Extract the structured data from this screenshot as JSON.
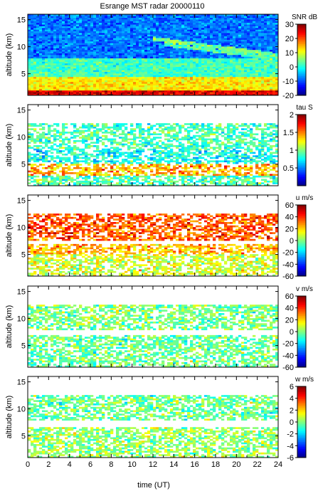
{
  "chart_data": [
    {
      "type": "heatmap",
      "title": "Esrange MST radar 20000110",
      "ylabel": "altitude (km)",
      "xlim": [
        0,
        24
      ],
      "ylim": [
        1,
        16
      ],
      "yticks": [
        5,
        10,
        15
      ],
      "colorbar": {
        "label": "SNR dB",
        "range": [
          -20,
          30
        ],
        "ticks": [
          -20,
          -10,
          0,
          10,
          20,
          30
        ]
      },
      "layers": [
        {
          "alt_range": [
            1.0,
            2.0
          ],
          "value": 25
        },
        {
          "alt_range": [
            2.0,
            4.5
          ],
          "value": 12
        },
        {
          "alt_range": [
            4.5,
            8.0
          ],
          "value": 2
        },
        {
          "alt_range": [
            8.0,
            16.0
          ],
          "value": -8
        }
      ],
      "features": [
        {
          "time_range": [
            12,
            24
          ],
          "alt_start": [
            11.5,
            8.5
          ],
          "value": 5
        },
        {
          "time_range": [
            13,
            24
          ],
          "alt_start": [
            10.5,
            7.8
          ],
          "value": 3
        }
      ]
    },
    {
      "type": "heatmap",
      "ylabel": "altitude (km)",
      "xlim": [
        0,
        24
      ],
      "ylim": [
        1,
        16
      ],
      "yticks": [
        5,
        10,
        15
      ],
      "colorbar": {
        "label": "tau S",
        "range": [
          0,
          2
        ],
        "ticks": [
          0.5,
          1,
          1.5,
          2
        ]
      },
      "layers": [
        {
          "alt_range": [
            1.0,
            3.0
          ],
          "value": 0.9
        },
        {
          "alt_range": [
            3.0,
            5.0
          ],
          "value": 1.4
        },
        {
          "alt_range": [
            5.0,
            8.0
          ],
          "value": 0.8
        },
        {
          "alt_range": [
            8.0,
            12.5
          ],
          "value": 0.9
        }
      ]
    },
    {
      "type": "heatmap",
      "ylabel": "altitude (km)",
      "xlim": [
        0,
        24
      ],
      "ylim": [
        1,
        16
      ],
      "yticks": [
        5,
        10,
        15
      ],
      "colorbar": {
        "label": "u m/s",
        "range": [
          -60,
          60
        ],
        "ticks": [
          -60,
          -40,
          -20,
          0,
          20,
          40,
          60
        ]
      },
      "layers": [
        {
          "alt_range": [
            1.0,
            5.0
          ],
          "value": 10
        },
        {
          "alt_range": [
            5.0,
            7.0
          ],
          "value": 25
        },
        {
          "alt_range": [
            7.5,
            12.5
          ],
          "value": 35
        }
      ]
    },
    {
      "type": "heatmap",
      "ylabel": "altitude (km)",
      "xlim": [
        0,
        24
      ],
      "ylim": [
        1,
        16
      ],
      "yticks": [
        5,
        10,
        15
      ],
      "colorbar": {
        "label": "v m/s",
        "range": [
          -60,
          60
        ],
        "ticks": [
          -60,
          -40,
          -20,
          0,
          20,
          40,
          60
        ]
      },
      "layers": [
        {
          "alt_range": [
            1.0,
            7.0
          ],
          "value": -2
        },
        {
          "alt_range": [
            8.0,
            12.5
          ],
          "value": 0
        }
      ]
    },
    {
      "type": "heatmap",
      "xlabel": "time (UT)",
      "ylabel": "altitude (km)",
      "xlim": [
        0,
        24
      ],
      "xticks": [
        0,
        2,
        4,
        6,
        8,
        10,
        12,
        14,
        16,
        18,
        20,
        22,
        24
      ],
      "ylim": [
        1,
        16
      ],
      "yticks": [
        5,
        10,
        15
      ],
      "colorbar": {
        "label": "w m/s",
        "range": [
          -6,
          6
        ],
        "ticks": [
          -6,
          -4,
          -2,
          0,
          2,
          4,
          6
        ]
      },
      "layers": [
        {
          "alt_range": [
            1.0,
            6.5
          ],
          "value": 0.3
        },
        {
          "alt_range": [
            8.0,
            12.5
          ],
          "value": -0.2
        }
      ]
    }
  ]
}
